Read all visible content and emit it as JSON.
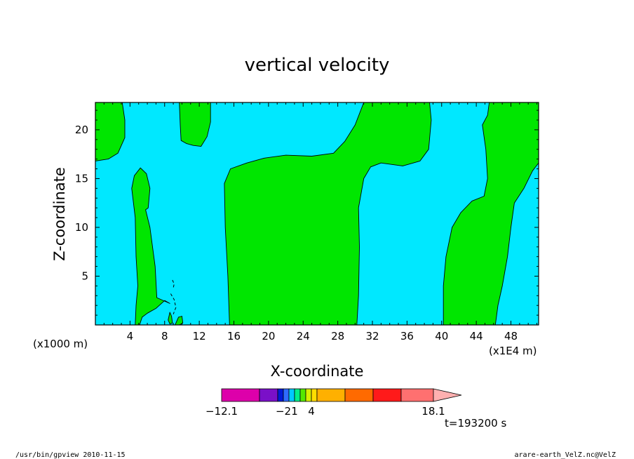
{
  "chart_data": {
    "type": "heatmap",
    "title": "vertical velocity",
    "xlabel": "X-coordinate",
    "ylabel": "Z-coordinate",
    "x_scale_note": "(x1000 m)",
    "x_unit_note": "(x1E4 m)",
    "xlim": [
      0,
      51.2
    ],
    "ylim": [
      0,
      22.8
    ],
    "x_ticks": [
      4,
      8,
      12,
      16,
      20,
      24,
      28,
      32,
      36,
      40,
      44,
      48
    ],
    "y_ticks": [
      5,
      10,
      15,
      20
    ],
    "colors": {
      "negative_fill": "#00e8ff",
      "positive_fill": "#00e600",
      "contour": "#000000"
    },
    "regions": [
      {
        "sign": "positive",
        "name": "left-top-corner",
        "points": [
          [
            0,
            22.8
          ],
          [
            3.1,
            22.8
          ],
          [
            3.4,
            21
          ],
          [
            3.4,
            19.2
          ],
          [
            2.6,
            17.6
          ],
          [
            1.5,
            17
          ],
          [
            0,
            16.8
          ]
        ]
      },
      {
        "sign": "positive",
        "name": "top-lobe-10",
        "points": [
          [
            9.7,
            22.8
          ],
          [
            13.3,
            22.8
          ],
          [
            13.3,
            20.8
          ],
          [
            12.9,
            19.3
          ],
          [
            12.2,
            18.3
          ],
          [
            11.3,
            18.4
          ],
          [
            10.5,
            18.6
          ],
          [
            9.9,
            18.9
          ],
          [
            9.8,
            20.5
          ]
        ]
      },
      {
        "sign": "positive",
        "name": "lower-left-plume",
        "points": [
          [
            4.6,
            0
          ],
          [
            5.1,
            0
          ],
          [
            5.4,
            0.8
          ],
          [
            6.0,
            1.2
          ],
          [
            7.0,
            1.7
          ],
          [
            8.0,
            2.5
          ],
          [
            8.6,
            2.2
          ],
          [
            7.1,
            2.8
          ],
          [
            6.9,
            6
          ],
          [
            6.3,
            10
          ],
          [
            5.8,
            11.8
          ],
          [
            6.1,
            12
          ],
          [
            6.3,
            14
          ],
          [
            5.9,
            15.5
          ],
          [
            5.2,
            16.1
          ],
          [
            4.5,
            15.3
          ],
          [
            4.2,
            14
          ],
          [
            4.6,
            11
          ],
          [
            4.7,
            7
          ],
          [
            4.9,
            4
          ],
          [
            4.7,
            2
          ],
          [
            4.6,
            0
          ]
        ]
      },
      {
        "sign": "positive",
        "name": "central-band",
        "points": [
          [
            15.5,
            0
          ],
          [
            30.2,
            0
          ],
          [
            30.4,
            3
          ],
          [
            30.5,
            8
          ],
          [
            30.4,
            12
          ],
          [
            31.0,
            15
          ],
          [
            31.8,
            16.2
          ],
          [
            33,
            16.6
          ],
          [
            35.5,
            16.3
          ],
          [
            37.5,
            16.8
          ],
          [
            38.5,
            18
          ],
          [
            38.8,
            21
          ],
          [
            38.6,
            22.8
          ],
          [
            31.0,
            22.8
          ],
          [
            30.0,
            20.5
          ],
          [
            28.8,
            18.8
          ],
          [
            27.5,
            17.6
          ],
          [
            25,
            17.3
          ],
          [
            22,
            17.4
          ],
          [
            19.5,
            17.1
          ],
          [
            17.5,
            16.6
          ],
          [
            15.6,
            16
          ],
          [
            14.9,
            14.5
          ],
          [
            15.0,
            10
          ],
          [
            15.3,
            5
          ],
          [
            15.5,
            0
          ]
        ]
      },
      {
        "sign": "positive",
        "name": "right-band",
        "points": [
          [
            40.2,
            0
          ],
          [
            46.2,
            0
          ],
          [
            46.5,
            2
          ],
          [
            47.0,
            4
          ],
          [
            47.6,
            7
          ],
          [
            48.0,
            10
          ],
          [
            48.4,
            12.5
          ],
          [
            49.5,
            14
          ],
          [
            50.5,
            15.8
          ],
          [
            51.2,
            16.6
          ],
          [
            51.2,
            22.8
          ],
          [
            45.5,
            22.8
          ],
          [
            45.3,
            21.5
          ],
          [
            44.7,
            20.5
          ],
          [
            45.1,
            18
          ],
          [
            45.3,
            15
          ],
          [
            44.9,
            13.2
          ],
          [
            43.5,
            12.7
          ],
          [
            42.2,
            11.5
          ],
          [
            41.2,
            10
          ],
          [
            40.5,
            7
          ],
          [
            40.2,
            4
          ],
          [
            40.2,
            0
          ]
        ]
      },
      {
        "sign": "positive",
        "name": "small-blob-a",
        "points": [
          [
            8.4,
            0.5
          ],
          [
            8.6,
            1.3
          ],
          [
            8.8,
            0.9
          ],
          [
            8.9,
            0.2
          ],
          [
            8.6,
            0.1
          ]
        ]
      },
      {
        "sign": "positive",
        "name": "small-blob-b",
        "points": [
          [
            9.2,
            0
          ],
          [
            9.6,
            0.8
          ],
          [
            10,
            0.9
          ],
          [
            10.1,
            0.2
          ],
          [
            9.7,
            0
          ]
        ]
      }
    ],
    "dashed_contours": [
      {
        "points": [
          [
            8.9,
            4.6
          ],
          [
            9.1,
            4.2
          ],
          [
            9.0,
            3.8
          ]
        ]
      },
      {
        "points": [
          [
            8.7,
            3.2
          ],
          [
            9.1,
            2.6
          ],
          [
            9.3,
            1.8
          ],
          [
            9.0,
            1.1
          ]
        ]
      }
    ],
    "colorbar": {
      "colors": [
        "#dd00aa",
        "#7a10c8",
        "#0019d6",
        "#2f6bff",
        "#00c8ff",
        "#00ee88",
        "#55e800",
        "#d8f000",
        "#ffdd00",
        "#ffb000",
        "#ff6a00",
        "#ff1a1a",
        "#ff7070"
      ],
      "extension_color": "#ffb0b0",
      "labels": [
        {
          "text": "−12.1",
          "index": 0
        },
        {
          "text": "−2",
          "index": 3
        },
        {
          "text": "1",
          "index": 5
        },
        {
          "text": "4",
          "index": 8
        },
        {
          "text": "18.1",
          "index": 13
        }
      ]
    },
    "time_label": "t=193200 s"
  },
  "footer": {
    "left": "/usr/bin/gpview  2010-11-15",
    "right": "arare-earth_VelZ.nc@VelZ"
  }
}
